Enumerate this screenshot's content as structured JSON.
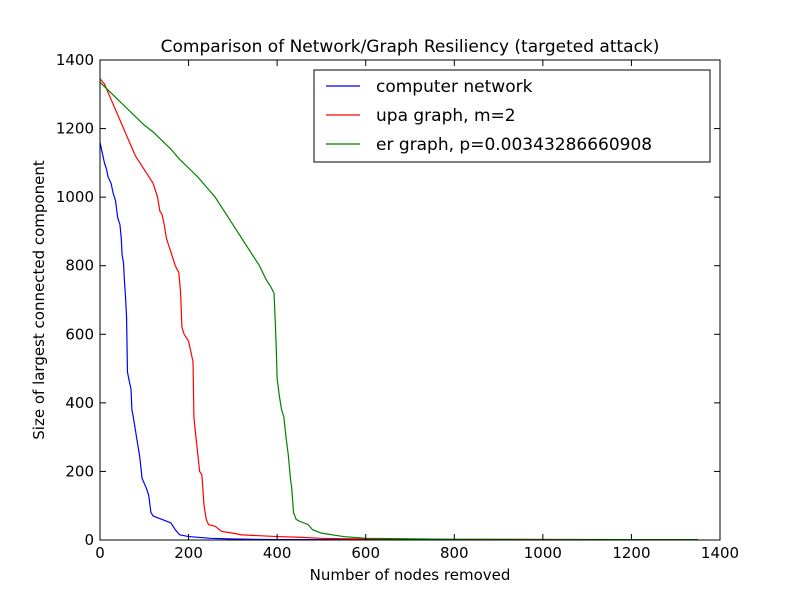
{
  "chart_data": {
    "type": "line",
    "title": "Comparison of Network/Graph Resiliency (targeted attack)",
    "xlabel": "Number of nodes removed",
    "ylabel": "Size of largest connected component",
    "xlim": [
      0,
      1400
    ],
    "ylim": [
      0,
      1400
    ],
    "xticks": [
      0,
      200,
      400,
      600,
      800,
      1000,
      1200,
      1400
    ],
    "yticks": [
      0,
      200,
      400,
      600,
      800,
      1000,
      1200,
      1400
    ],
    "grid": false,
    "legend_position": "top-right",
    "series": [
      {
        "name": "computer network",
        "color": "#0000ff",
        "points": [
          [
            0,
            1160
          ],
          [
            5,
            1130
          ],
          [
            10,
            1100
          ],
          [
            15,
            1080
          ],
          [
            18,
            1060
          ],
          [
            25,
            1040
          ],
          [
            30,
            1010
          ],
          [
            35,
            990
          ],
          [
            40,
            940
          ],
          [
            45,
            920
          ],
          [
            48,
            880
          ],
          [
            50,
            830
          ],
          [
            53,
            810
          ],
          [
            55,
            760
          ],
          [
            58,
            700
          ],
          [
            60,
            650
          ],
          [
            62,
            490
          ],
          [
            65,
            470
          ],
          [
            70,
            440
          ],
          [
            72,
            380
          ],
          [
            75,
            360
          ],
          [
            80,
            320
          ],
          [
            85,
            280
          ],
          [
            90,
            240
          ],
          [
            95,
            180
          ],
          [
            100,
            165
          ],
          [
            105,
            150
          ],
          [
            110,
            130
          ],
          [
            115,
            80
          ],
          [
            120,
            70
          ],
          [
            130,
            65
          ],
          [
            140,
            60
          ],
          [
            150,
            55
          ],
          [
            160,
            50
          ],
          [
            170,
            30
          ],
          [
            180,
            15
          ],
          [
            200,
            10
          ],
          [
            250,
            5
          ],
          [
            300,
            3
          ],
          [
            400,
            1
          ],
          [
            600,
            1
          ],
          [
            1350,
            1
          ]
        ]
      },
      {
        "name": "upa graph, m=2",
        "color": "#ff0000",
        "points": [
          [
            0,
            1345
          ],
          [
            10,
            1330
          ],
          [
            20,
            1300
          ],
          [
            30,
            1270
          ],
          [
            40,
            1240
          ],
          [
            50,
            1210
          ],
          [
            60,
            1180
          ],
          [
            70,
            1150
          ],
          [
            80,
            1120
          ],
          [
            90,
            1100
          ],
          [
            100,
            1080
          ],
          [
            110,
            1060
          ],
          [
            120,
            1040
          ],
          [
            130,
            1000
          ],
          [
            135,
            960
          ],
          [
            140,
            950
          ],
          [
            145,
            920
          ],
          [
            150,
            880
          ],
          [
            155,
            860
          ],
          [
            160,
            840
          ],
          [
            170,
            800
          ],
          [
            178,
            780
          ],
          [
            182,
            720
          ],
          [
            185,
            620
          ],
          [
            190,
            600
          ],
          [
            200,
            580
          ],
          [
            205,
            550
          ],
          [
            210,
            520
          ],
          [
            212,
            360
          ],
          [
            215,
            320
          ],
          [
            220,
            260
          ],
          [
            225,
            200
          ],
          [
            230,
            190
          ],
          [
            235,
            100
          ],
          [
            240,
            60
          ],
          [
            245,
            45
          ],
          [
            260,
            40
          ],
          [
            275,
            25
          ],
          [
            300,
            20
          ],
          [
            320,
            15
          ],
          [
            400,
            10
          ],
          [
            450,
            8
          ],
          [
            500,
            5
          ],
          [
            600,
            3
          ],
          [
            800,
            2
          ],
          [
            1350,
            1
          ]
        ]
      },
      {
        "name": "er graph, p=0.00343286660908",
        "color": "#008000",
        "points": [
          [
            0,
            1335
          ],
          [
            20,
            1310
          ],
          [
            40,
            1285
          ],
          [
            60,
            1260
          ],
          [
            80,
            1235
          ],
          [
            100,
            1210
          ],
          [
            120,
            1190
          ],
          [
            140,
            1165
          ],
          [
            160,
            1140
          ],
          [
            180,
            1110
          ],
          [
            200,
            1085
          ],
          [
            220,
            1060
          ],
          [
            240,
            1030
          ],
          [
            260,
            1000
          ],
          [
            280,
            960
          ],
          [
            300,
            920
          ],
          [
            320,
            880
          ],
          [
            340,
            840
          ],
          [
            360,
            800
          ],
          [
            375,
            760
          ],
          [
            385,
            740
          ],
          [
            393,
            720
          ],
          [
            396,
            630
          ],
          [
            398,
            560
          ],
          [
            400,
            470
          ],
          [
            405,
            420
          ],
          [
            410,
            380
          ],
          [
            415,
            360
          ],
          [
            420,
            300
          ],
          [
            425,
            250
          ],
          [
            430,
            180
          ],
          [
            433,
            150
          ],
          [
            437,
            80
          ],
          [
            443,
            60
          ],
          [
            450,
            55
          ],
          [
            470,
            45
          ],
          [
            480,
            30
          ],
          [
            500,
            20
          ],
          [
            550,
            10
          ],
          [
            600,
            5
          ],
          [
            800,
            2
          ],
          [
            1000,
            1
          ],
          [
            1350,
            1
          ]
        ]
      }
    ]
  }
}
